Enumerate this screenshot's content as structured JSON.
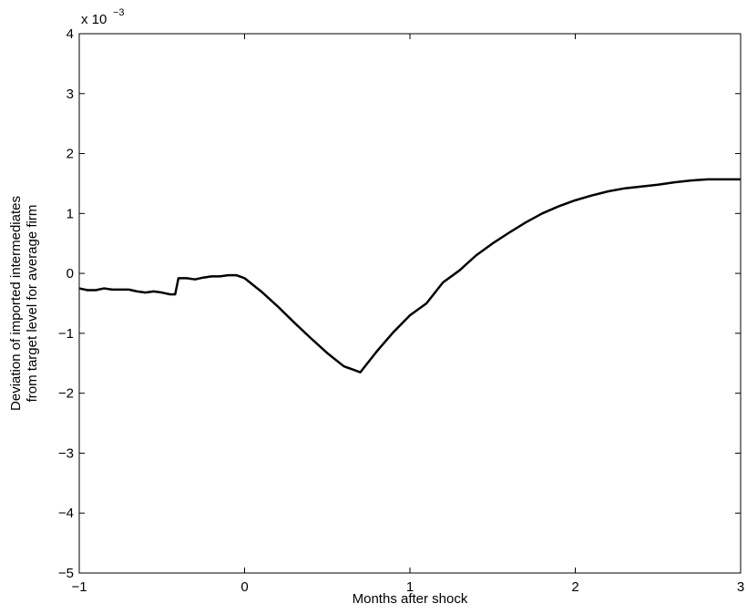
{
  "chart_data": {
    "type": "line",
    "xlabel": "Months after shock",
    "ylabel": [
      "Deviation of imported intermediates",
      "from target level for average firm"
    ],
    "y_multiplier": {
      "base": "x 10",
      "exponent": "−3"
    },
    "x": [
      -1,
      -0.95,
      -0.9,
      -0.85,
      -0.8,
      -0.7,
      -0.65,
      -0.6,
      -0.55,
      -0.5,
      -0.45,
      -0.42,
      -0.4,
      -0.35,
      -0.3,
      -0.25,
      -0.2,
      -0.15,
      -0.1,
      -0.05,
      0,
      0.1,
      0.2,
      0.3,
      0.4,
      0.5,
      0.6,
      0.65,
      0.7,
      0.8,
      0.9,
      1.0,
      1.1,
      1.2,
      1.3,
      1.4,
      1.5,
      1.6,
      1.7,
      1.8,
      1.9,
      2.0,
      2.1,
      2.2,
      2.3,
      2.4,
      2.5,
      2.6,
      2.7,
      2.8,
      2.9,
      3.0
    ],
    "series": [
      {
        "color": "#000000",
        "values": [
          -0.25,
          -0.28,
          -0.28,
          -0.25,
          -0.27,
          -0.27,
          -0.3,
          -0.32,
          -0.3,
          -0.32,
          -0.35,
          -0.35,
          -0.08,
          -0.08,
          -0.1,
          -0.07,
          -0.05,
          -0.05,
          -0.03,
          -0.03,
          -0.08,
          -0.3,
          -0.55,
          -0.82,
          -1.08,
          -1.33,
          -1.55,
          -1.6,
          -1.65,
          -1.3,
          -0.98,
          -0.7,
          -0.5,
          -0.15,
          0.05,
          0.3,
          0.5,
          0.68,
          0.85,
          1.0,
          1.12,
          1.22,
          1.3,
          1.37,
          1.42,
          1.45,
          1.48,
          1.52,
          1.55,
          1.57,
          1.57,
          1.57
        ]
      }
    ],
    "xlim": [
      -1,
      3
    ],
    "xticks": [
      {
        "value": -1,
        "label": "−1"
      },
      0,
      1,
      2,
      3
    ],
    "ylim": [
      -5,
      4
    ],
    "yticks": [
      {
        "value": -5,
        "label": "−5"
      },
      {
        "value": -4,
        "label": "−4"
      },
      {
        "value": -3,
        "label": "−3"
      },
      {
        "value": -2,
        "label": "−2"
      },
      {
        "value": -1,
        "label": "−1"
      },
      0,
      1,
      2,
      3,
      4
    ],
    "grid": false
  }
}
